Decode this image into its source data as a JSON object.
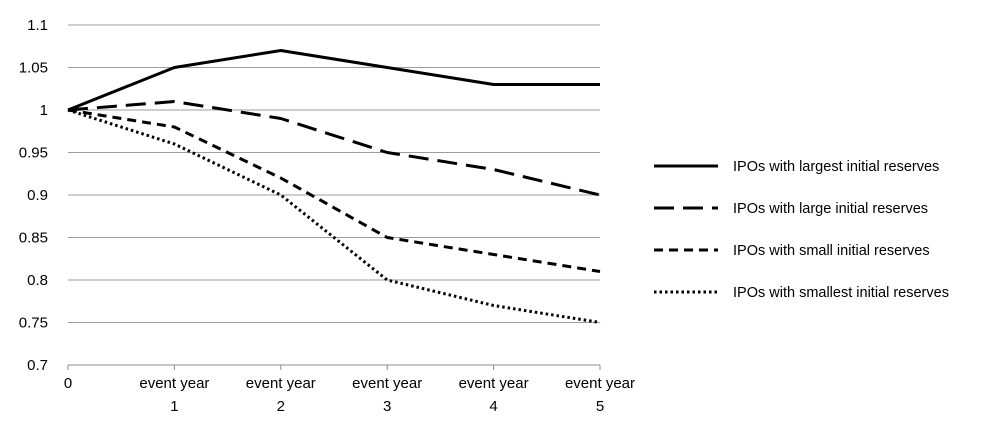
{
  "chart_data": {
    "type": "line",
    "categories": [
      [
        "0"
      ],
      [
        "event year",
        "1"
      ],
      [
        "event year",
        "2"
      ],
      [
        "event year",
        "3"
      ],
      [
        "event year",
        "4"
      ],
      [
        "event year",
        "5"
      ]
    ],
    "yticks": [
      "0.7",
      "0.75",
      "0.8",
      "0.85",
      "0.9",
      "0.95",
      "1",
      "1.05",
      "1.1"
    ],
    "ylim": [
      0.7,
      1.1
    ],
    "grid": true,
    "legend_position": "right",
    "series": [
      {
        "name": "IPOs with largest initial reserves",
        "values": [
          1,
          1.05,
          1.07,
          1.05,
          1.03,
          1.03
        ],
        "style": "solid",
        "color": "#000000"
      },
      {
        "name": "IPOs with large initial reserves",
        "values": [
          1,
          1.01,
          0.99,
          0.95,
          0.93,
          0.9
        ],
        "style": "long-dash",
        "color": "#000000"
      },
      {
        "name": "IPOs with small initial reserves",
        "values": [
          1,
          0.98,
          0.92,
          0.85,
          0.83,
          0.81
        ],
        "style": "short-dash",
        "color": "#000000"
      },
      {
        "name": "IPOs with smallest initial reserves",
        "values": [
          1,
          0.96,
          0.9,
          0.8,
          0.77,
          0.75
        ],
        "style": "dotted",
        "color": "#000000"
      }
    ]
  }
}
